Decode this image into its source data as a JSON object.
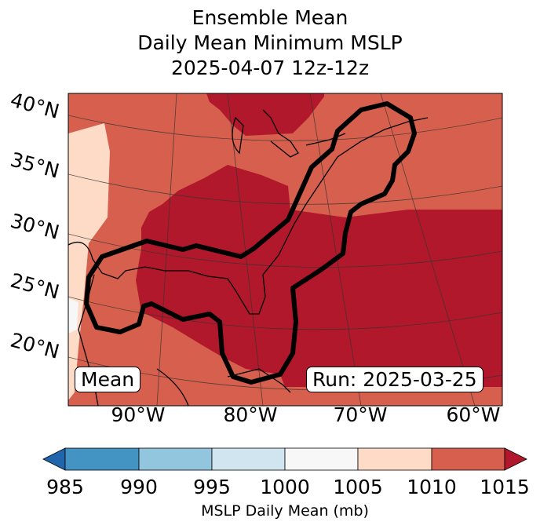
{
  "title": {
    "line1": "Ensemble Mean",
    "line2": "Daily Mean Minimum MSLP",
    "line3": "2025-04-07 12z-12z"
  },
  "map": {
    "lat_labels": [
      "40°N",
      "35°N",
      "30°N",
      "25°N",
      "20°N"
    ],
    "lon_labels": [
      "90°W",
      "80°W",
      "70°W",
      "60°W"
    ],
    "left_box": "Mean",
    "right_box": "Run: 2025-03-25"
  },
  "colorbar": {
    "ticks": [
      "985",
      "990",
      "995",
      "1000",
      "1005",
      "1010",
      "1015"
    ],
    "label": "MSLP Daily Mean (mb)",
    "colors": {
      "under": "#2166ac",
      "985": "#4393c3",
      "990": "#92c5de",
      "995": "#d1e5f0",
      "1000": "#f7f7f7",
      "1005": "#fddbc7",
      "1010": "#d6604d",
      "over": "#b2182b"
    }
  }
}
